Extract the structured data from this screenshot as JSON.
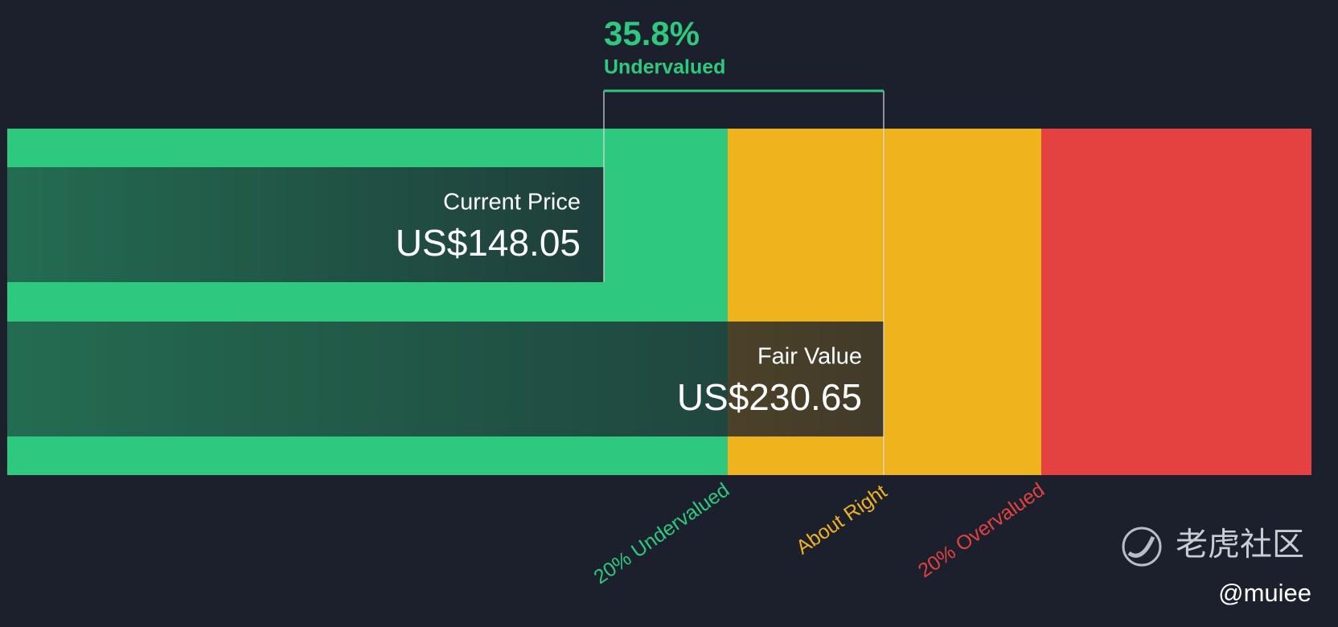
{
  "discount": {
    "value": "35.8%",
    "status": "Undervalued"
  },
  "current_price": {
    "title": "Current Price",
    "value": "US$148.05"
  },
  "fair_value": {
    "title": "Fair Value",
    "value": "US$230.65"
  },
  "zones": [
    "20% Undervalued",
    "About Right",
    "20% Overvalued"
  ],
  "watermark": {
    "brand": "老虎社区",
    "user": "@muiee"
  }
}
